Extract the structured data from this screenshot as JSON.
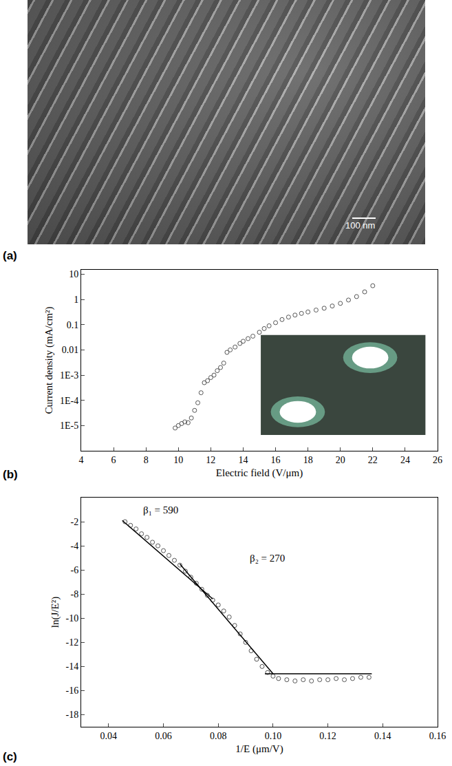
{
  "image": {
    "panel_label": "(a)",
    "scale_bar": "100 nm"
  },
  "chart_data": [
    {
      "type": "scatter",
      "panel_label": "(b)",
      "x_label": "Electric field (V/μm)",
      "y_label": "Current density (mA/cm²)",
      "log": "y",
      "grid": false,
      "marker": "open_circle",
      "color": "#555555",
      "x": [
        9.8,
        10.0,
        10.2,
        10.4,
        10.6,
        10.8,
        11.0,
        11.2,
        11.4,
        11.6,
        11.8,
        12.0,
        12.2,
        12.4,
        12.6,
        12.8,
        13.0,
        13.2,
        13.5,
        13.8,
        14.0,
        14.3,
        14.6,
        15.0,
        15.3,
        15.6,
        16.0,
        16.4,
        16.8,
        17.2,
        17.6,
        18.0,
        18.5,
        19.0,
        19.5,
        20.0,
        20.5,
        21.0,
        21.5,
        22.0
      ],
      "values": [
        8e-06,
        1e-05,
        1.2e-05,
        1.4e-05,
        1.3e-05,
        2e-05,
        4e-05,
        8e-05,
        0.0002,
        0.0005,
        0.0006,
        0.0008,
        0.001,
        0.0015,
        0.002,
        0.003,
        0.008,
        0.01,
        0.013,
        0.018,
        0.022,
        0.028,
        0.035,
        0.05,
        0.07,
        0.09,
        0.12,
        0.16,
        0.2,
        0.24,
        0.28,
        0.32,
        0.38,
        0.45,
        0.55,
        0.7,
        0.95,
        1.3,
        2.0,
        3.5
      ],
      "xlim": [
        4,
        26
      ],
      "xticks": [
        4,
        6,
        8,
        10,
        12,
        14,
        16,
        18,
        20,
        22,
        24,
        26
      ],
      "ylim": [
        1e-06,
        15
      ],
      "yticks": [
        {
          "value": 1e-05,
          "label": "1E-5"
        },
        {
          "value": 0.0001,
          "label": "1E-4"
        },
        {
          "value": 0.001,
          "label": "1E-3"
        },
        0.01,
        0.1,
        1,
        10
      ]
    },
    {
      "type": "scatter",
      "panel_label": "(c)",
      "x_label": "1/E (μm/V)",
      "y_label": "ln(J/E²)",
      "grid": false,
      "series": [
        {
          "type": "scatter",
          "marker": "open_circle",
          "color": "#555555",
          "x": [
            0.046,
            0.048,
            0.05,
            0.052,
            0.054,
            0.056,
            0.058,
            0.06,
            0.062,
            0.064,
            0.066,
            0.068,
            0.07,
            0.072,
            0.074,
            0.076,
            0.078,
            0.08,
            0.082,
            0.084,
            0.086,
            0.088,
            0.09,
            0.092,
            0.094,
            0.096,
            0.098,
            0.1,
            0.102,
            0.105,
            0.108,
            0.111,
            0.114,
            0.117,
            0.12,
            0.123,
            0.126,
            0.129,
            0.132,
            0.135
          ],
          "values": [
            -2.0,
            -2.3,
            -2.6,
            -3.0,
            -3.3,
            -3.7,
            -4.0,
            -4.4,
            -4.8,
            -5.2,
            -5.6,
            -6.1,
            -6.6,
            -7.1,
            -7.6,
            -8.1,
            -8.5,
            -8.9,
            -9.4,
            -9.9,
            -10.6,
            -11.3,
            -12.0,
            -12.7,
            -13.4,
            -14.0,
            -14.5,
            -14.8,
            -15.0,
            -15.1,
            -15.2,
            -15.1,
            -15.2,
            -15.1,
            -15.1,
            -15.0,
            -15.1,
            -15.0,
            -14.9,
            -14.9
          ]
        },
        {
          "type": "line",
          "line_style": "solid",
          "color": "#000000",
          "x": [
            0.045,
            0.078
          ],
          "values": [
            -1.9,
            -8.4
          ]
        },
        {
          "type": "line",
          "line_style": "solid",
          "color": "#000000",
          "x": [
            0.066,
            0.1
          ],
          "values": [
            -5.5,
            -14.6
          ]
        },
        {
          "type": "line",
          "line_style": "solid",
          "color": "#000000",
          "x": [
            0.097,
            0.136
          ],
          "values": [
            -14.6,
            -14.6
          ]
        }
      ],
      "annotations": [
        {
          "text": "β₁ = 590",
          "x": 0.052,
          "y": -1.0
        },
        {
          "text": "β₂ = 270",
          "x": 0.091,
          "y": -5.0
        }
      ],
      "xlim": [
        0.03,
        0.16
      ],
      "xticks": [
        0.04,
        0.06,
        0.08,
        {
          "value": 0.1,
          "label": "0.10"
        },
        0.12,
        0.14,
        0.16
      ],
      "ylim": [
        -19,
        0
      ],
      "yticks": [
        -18,
        -16,
        -14,
        -12,
        -10,
        -8,
        -6,
        -4,
        -2
      ]
    }
  ]
}
